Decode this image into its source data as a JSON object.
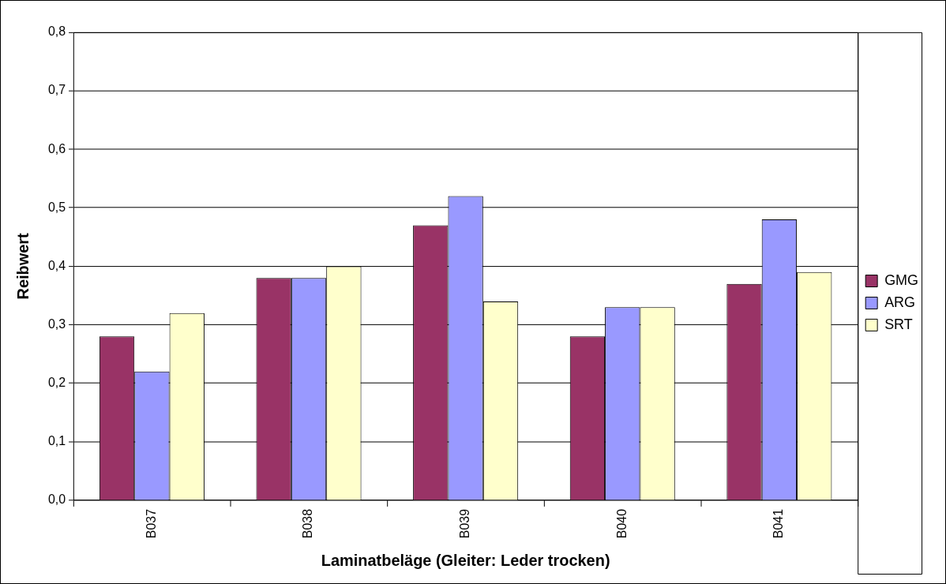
{
  "chart_data": {
    "type": "bar",
    "xlabel": "Laminatbeläge (Gleiter: Leder trocken)",
    "ylabel": "Reibwert",
    "categories": [
      "B037",
      "B038",
      "B039",
      "B040",
      "B041"
    ],
    "series": [
      {
        "name": "GMG",
        "color": "#993366",
        "values": [
          0.28,
          0.38,
          0.47,
          0.28,
          0.37
        ]
      },
      {
        "name": "ARG",
        "color": "#9999ff",
        "values": [
          0.22,
          0.38,
          0.52,
          0.33,
          0.48
        ]
      },
      {
        "name": "SRT",
        "color": "#ffffcc",
        "values": [
          0.32,
          0.4,
          0.34,
          0.33,
          0.39
        ]
      }
    ],
    "ylim": [
      0,
      0.8
    ],
    "yticks": [
      {
        "value": 0,
        "label": "0,0"
      },
      {
        "value": 0.1,
        "label": "0,1"
      },
      {
        "value": 0.2,
        "label": "0,2"
      },
      {
        "value": 0.3,
        "label": "0,3"
      },
      {
        "value": 0.4,
        "label": "0,4"
      },
      {
        "value": 0.5,
        "label": "0,5"
      },
      {
        "value": 0.6,
        "label": "0,6"
      },
      {
        "value": 0.7,
        "label": "0,7"
      },
      {
        "value": 0.8,
        "label": "0,8"
      }
    ],
    "grid": "y",
    "legend": "right"
  }
}
